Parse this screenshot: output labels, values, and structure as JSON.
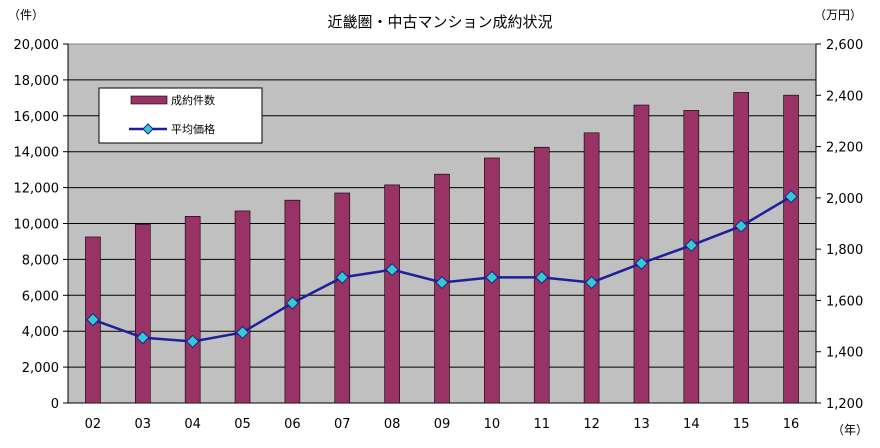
{
  "chart_data": {
    "type": "bar",
    "title": "近畿圏・中古マンション成約状況",
    "categories": [
      "02",
      "03",
      "04",
      "05",
      "06",
      "07",
      "08",
      "09",
      "10",
      "11",
      "12",
      "13",
      "14",
      "15",
      "16"
    ],
    "y_left_unit": "（件）",
    "y_right_unit": "（万円）",
    "x_unit": "（年）",
    "y_left_range": [
      0,
      20000
    ],
    "y_left_ticks": [
      "0",
      "2,000",
      "4,000",
      "6,000",
      "8,000",
      "10,000",
      "12,000",
      "14,000",
      "16,000",
      "18,000",
      "20,000"
    ],
    "y_right_range": [
      1200,
      2600
    ],
    "y_right_ticks": [
      "1,200",
      "1,400",
      "1,600",
      "1,800",
      "2,000",
      "2,200",
      "2,400",
      "2,600"
    ],
    "grid": true,
    "legend_position": "top-left",
    "plot_background": "#c0c0c0",
    "series": [
      {
        "name": "成約件数",
        "kind": "bar",
        "axis": "left",
        "color": "#993366",
        "values": [
          9250,
          9950,
          10400,
          10700,
          11300,
          11700,
          12150,
          12750,
          13650,
          14250,
          15050,
          16600,
          16300,
          17300,
          17150
        ]
      },
      {
        "name": "平均価格",
        "kind": "line",
        "axis": "right",
        "color": "#1f1f99",
        "marker_color": "#33cccc",
        "values": [
          1525,
          1455,
          1440,
          1475,
          1590,
          1690,
          1720,
          1670,
          1690,
          1690,
          1670,
          1745,
          1815,
          1890,
          2005
        ]
      }
    ]
  }
}
